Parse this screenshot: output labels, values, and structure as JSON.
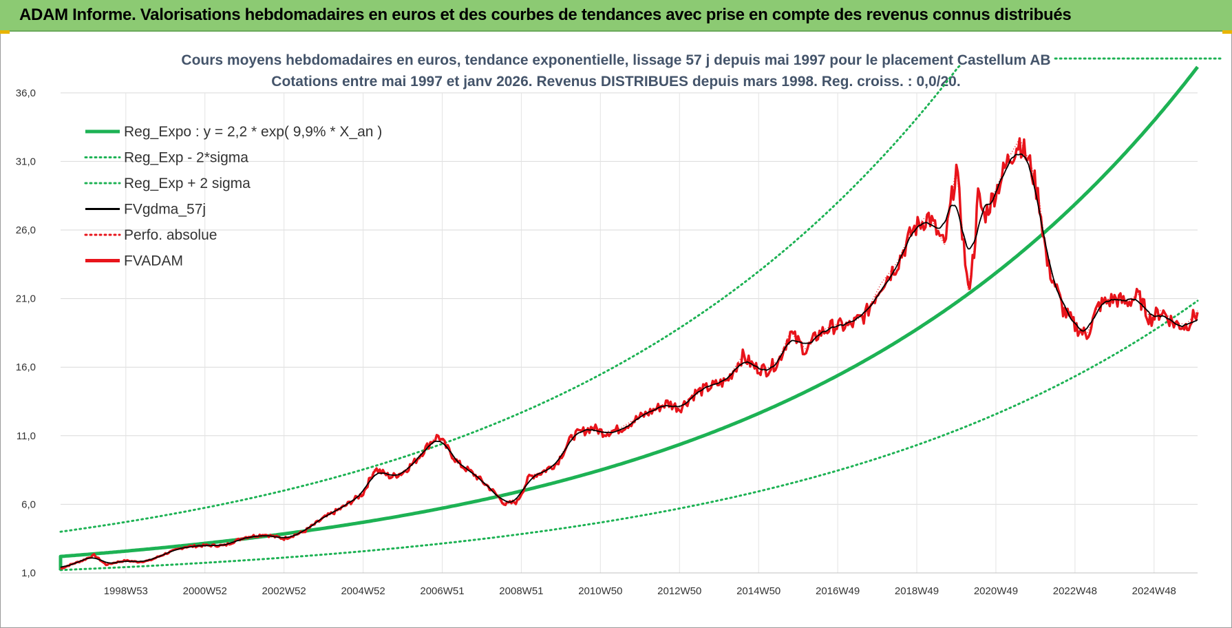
{
  "header": {
    "title": "ADAM Informe. Valorisations hebdomadaires en euros et des courbes de tendances avec prise en compte des revenus connus distribués"
  },
  "colors": {
    "header_bg": "#8cca73",
    "reg_expo": "#1db254",
    "reg_band": "#1db254",
    "fvgdma": "#000000",
    "perfo": "#e8141b",
    "fvadam": "#e8141b"
  },
  "chart_data": {
    "type": "line",
    "title_line1": "Cours moyens hebdomadaires en euros, tendance exponentielle, lissage 57 j depuis mai 1997 pour le placement Castellum AB",
    "title_line2": "Cotations entre mai 1997 et janv 2026. Revenus DISTRIBUES depuis mars 1998. Reg. croiss. : 0,0/20.",
    "ylim": [
      1,
      38
    ],
    "xlim": [
      1997.35,
      2026.1
    ],
    "y_ticks": [
      "1,0",
      "6,0",
      "11,0",
      "16,0",
      "21,0",
      "26,0",
      "31,0",
      "36,0"
    ],
    "y_tick_values": [
      1,
      6,
      11,
      16,
      21,
      26,
      31,
      36
    ],
    "x_ticks": [
      "1998W53",
      "2000W52",
      "2002W52",
      "2004W52",
      "2006W51",
      "2008W51",
      "2010W50",
      "2012W50",
      "2014W50",
      "2016W49",
      "2018W49",
      "2020W49",
      "2022W48",
      "2024W48"
    ],
    "x_tick_values": [
      1999.0,
      2001.0,
      2003.0,
      2005.0,
      2007.0,
      2009.0,
      2011.0,
      2013.0,
      2015.0,
      2017.0,
      2019.0,
      2021.0,
      2023.0,
      2025.0
    ],
    "grid": true,
    "legend_position": "top-left",
    "legend": [
      {
        "label": "Reg_Expo : y = 2,2 * exp( 9,9% *  X_an )",
        "style": "solid-thick",
        "color": "#1db254"
      },
      {
        "label": "Reg_Exp - 2*sigma",
        "style": "dotted",
        "color": "#1db254"
      },
      {
        "label": "Reg_Exp + 2 sigma",
        "style": "dotted",
        "color": "#1db254"
      },
      {
        "label": "FVgdma_57j",
        "style": "solid",
        "color": "#000000"
      },
      {
        "label": "Perfo. absolue",
        "style": "dotted",
        "color": "#e8141b"
      },
      {
        "label": "FVADAM",
        "style": "solid-thick",
        "color": "#e8141b"
      }
    ],
    "regression": {
      "a": 2.2,
      "rate": 0.099,
      "x0": 1997.35,
      "jump_from": 1.2
    },
    "band_lower_factor": 0.55,
    "band_upper_factor": 1.82,
    "band_upper_ceiling": 38.5,
    "series": [
      {
        "name": "FVADAM",
        "x": [
          1997.35,
          1997.6,
          1997.9,
          1998.2,
          1998.5,
          1998.8,
          1999.0,
          1999.3,
          1999.6,
          2000.0,
          2000.5,
          2001.0,
          2001.5,
          2002.0,
          2002.5,
          2003.0,
          2003.5,
          2004.0,
          2004.5,
          2005.0,
          2005.3,
          2005.7,
          2006.0,
          2006.3,
          2006.7,
          2006.9,
          2007.1,
          2007.4,
          2007.8,
          2008.2,
          2008.6,
          2008.9,
          2009.2,
          2009.5,
          2009.9,
          2010.3,
          2010.8,
          2011.1,
          2011.5,
          2011.9,
          2012.3,
          2012.7,
          2013.0,
          2013.4,
          2013.8,
          2014.2,
          2014.6,
          2014.9,
          2015.2,
          2015.5,
          2015.8,
          2016.2,
          2016.5,
          2016.9,
          2017.3,
          2017.7,
          2018.1,
          2018.5,
          2018.9,
          2019.3,
          2019.7,
          2020.0,
          2020.3,
          2020.45,
          2020.55,
          2020.7,
          2021.0,
          2021.3,
          2021.6,
          2021.9,
          2022.1,
          2022.3,
          2022.5,
          2022.7,
          2023.0,
          2023.3,
          2023.6,
          2024.0,
          2024.3,
          2024.6,
          2024.9,
          2025.2,
          2025.5,
          2025.8,
          2026.1
        ],
        "y": [
          1.3,
          1.6,
          1.9,
          2.3,
          1.6,
          1.8,
          1.9,
          1.8,
          1.9,
          2.4,
          2.9,
          3.0,
          3.0,
          3.6,
          3.8,
          3.5,
          4.0,
          5.0,
          5.8,
          6.8,
          8.6,
          8.0,
          8.3,
          9.1,
          10.5,
          11.0,
          10.2,
          9.0,
          8.2,
          7.2,
          6.0,
          6.2,
          8.0,
          8.3,
          9.0,
          11.0,
          11.6,
          11.2,
          11.5,
          12.2,
          12.8,
          13.4,
          13.0,
          14.1,
          14.6,
          15.0,
          16.8,
          16.0,
          15.8,
          16.4,
          18.5,
          17.2,
          18.4,
          19.0,
          19.0,
          19.8,
          22.0,
          23.5,
          26.0,
          27.0,
          24.8,
          30.5,
          21.5,
          24.5,
          28.5,
          27.0,
          28.8,
          31.0,
          32.5,
          30.5,
          28.0,
          23.5,
          22.0,
          20.2,
          19.0,
          18.3,
          20.5,
          21.0,
          20.7,
          21.2,
          19.5,
          20.1,
          19.2,
          19.0,
          20.0
        ]
      }
    ]
  }
}
